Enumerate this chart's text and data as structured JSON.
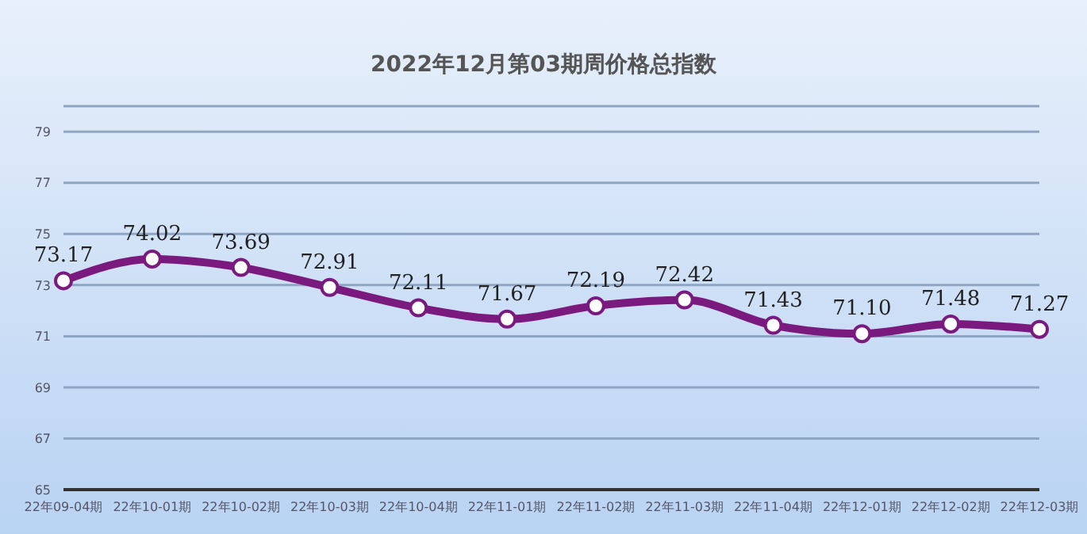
{
  "chart_data": {
    "type": "line",
    "title": "2022年12月第03期周价格总指数",
    "categories": [
      "22年09-04期",
      "22年10-01期",
      "22年10-02期",
      "22年10-03期",
      "22年10-04期",
      "22年11-01期",
      "22年11-02期",
      "22年11-03期",
      "22年11-04期",
      "22年12-01期",
      "22年12-02期",
      "22年12-03期"
    ],
    "series": [
      {
        "color": "#7a1a7e",
        "values": [
          73.17,
          74.02,
          73.69,
          72.91,
          72.11,
          71.67,
          72.19,
          72.42,
          71.43,
          71.1,
          71.48,
          71.27
        ],
        "value_labels": [
          "73.17",
          "74.02",
          "73.69",
          "72.91",
          "72.11",
          "71.67",
          "72.19",
          "72.42",
          "71.43",
          "71.10",
          "71.48",
          "71.27"
        ]
      }
    ],
    "ylim": [
      65,
      80
    ],
    "yticks": [
      65,
      67,
      69,
      71,
      73,
      75,
      77,
      79,
      {
        "value": 80,
        "label": null
      }
    ],
    "grid": "y",
    "marker": "circle",
    "line_style": "solid"
  }
}
